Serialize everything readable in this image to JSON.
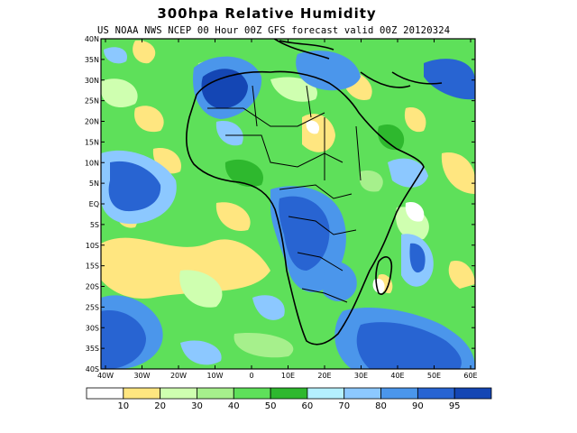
{
  "title": "300hpa Relative Humidity",
  "subtitle": "US NOAA NWS NCEP 00 Hour 00Z GFS forecast valid 00Z 20120324",
  "map": {
    "lat_labels": [
      "40N",
      "35N",
      "30N",
      "25N",
      "20N",
      "15N",
      "10N",
      "5N",
      "EQ",
      "5S",
      "10S",
      "15S",
      "20S",
      "25S",
      "30S",
      "35S",
      "40S"
    ],
    "lon_labels": [
      "40W",
      "30W",
      "20W",
      "10W",
      "0",
      "10E",
      "20E",
      "30E",
      "40E",
      "50E",
      "60E"
    ],
    "lon_range": [
      -40,
      60
    ],
    "lat_range": [
      -40,
      40
    ]
  },
  "legend": {
    "colors": [
      "#ffffff",
      "#ffe680",
      "#cfffb0",
      "#a6f08c",
      "#5ee05a",
      "#2eb82e",
      "#b4f0ff",
      "#8cc8ff",
      "#4b96eb",
      "#2864d2",
      "#1446b4"
    ],
    "labels": [
      "10",
      "20",
      "30",
      "40",
      "50",
      "60",
      "70",
      "80",
      "90",
      "95"
    ]
  }
}
